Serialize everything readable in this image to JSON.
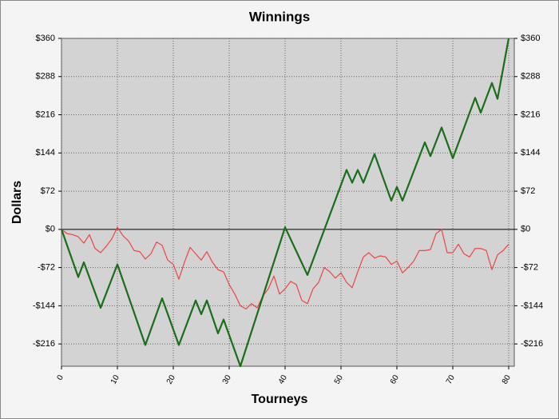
{
  "chart_data": {
    "type": "line",
    "title": "Winnings",
    "xlabel": "Tourneys",
    "ylabel": "Dollars",
    "xlim": [
      0,
      81
    ],
    "xticks": [
      0,
      10,
      20,
      30,
      40,
      50,
      60,
      70,
      80
    ],
    "ylim": [
      -258,
      360
    ],
    "yticks": [
      {
        "value": -216,
        "label": "-$216"
      },
      {
        "value": -144,
        "label": "-$144"
      },
      {
        "value": -72,
        "label": "-$72"
      },
      {
        "value": 0,
        "label": "$0"
      },
      {
        "value": 72,
        "label": "$72"
      },
      {
        "value": 144,
        "label": "$144"
      },
      {
        "value": 216,
        "label": "$216"
      },
      {
        "value": 288,
        "label": "$288"
      },
      {
        "value": 360,
        "label": "$360"
      }
    ],
    "grid": true,
    "series": [
      {
        "color": "#ee4444",
        "x": [
          0,
          1,
          2,
          3,
          4,
          5,
          6,
          7,
          8,
          9,
          10,
          11,
          12,
          13,
          14,
          15,
          16,
          17,
          18,
          19,
          20,
          21,
          22,
          23,
          24,
          25,
          26,
          27,
          28,
          29,
          30,
          31,
          32,
          33,
          34,
          35,
          36,
          37,
          38,
          39,
          40,
          41,
          42,
          43,
          44,
          45,
          46,
          47,
          48,
          49,
          50,
          51,
          52,
          53,
          54,
          55,
          56,
          57,
          58,
          59,
          60,
          61,
          62,
          63,
          64,
          65,
          66,
          67,
          68,
          69,
          70,
          71,
          72,
          73,
          74,
          75,
          76,
          77,
          78,
          79,
          80
        ],
        "values": [
          0,
          -8,
          -10,
          -14,
          -26,
          -10,
          -36,
          -44,
          -32,
          -18,
          4,
          -12,
          -22,
          -40,
          -42,
          -56,
          -46,
          -24,
          -30,
          -58,
          -66,
          -94,
          -62,
          -34,
          -46,
          -58,
          -42,
          -62,
          -76,
          -80,
          -104,
          -122,
          -144,
          -150,
          -140,
          -148,
          -126,
          -112,
          -88,
          -122,
          -112,
          -98,
          -104,
          -134,
          -140,
          -112,
          -100,
          -72,
          -80,
          -92,
          -82,
          -100,
          -110,
          -80,
          -52,
          -44,
          -54,
          -50,
          -52,
          -66,
          -60,
          -82,
          -72,
          -60,
          -40,
          -40,
          -38,
          -8,
          0,
          -44,
          -44,
          -28,
          -46,
          -52,
          -36,
          -36,
          -40,
          -76,
          -48,
          -40,
          -28
        ]
      },
      {
        "color": "#1a6e1a",
        "x": [
          0,
          3,
          4,
          7,
          10,
          15,
          18,
          21,
          24,
          25,
          26,
          28,
          29,
          32,
          40,
          44,
          51,
          52,
          53,
          54,
          56,
          59,
          60,
          61,
          65,
          66,
          68,
          70,
          74,
          75,
          77,
          78,
          80
        ],
        "values": [
          0,
          -90,
          -62,
          -148,
          -66,
          -218,
          -130,
          -218,
          -134,
          -160,
          -134,
          -196,
          -170,
          -258,
          4,
          -86,
          112,
          88,
          112,
          88,
          142,
          54,
          80,
          54,
          164,
          138,
          192,
          134,
          248,
          220,
          276,
          246,
          360
        ]
      }
    ]
  }
}
